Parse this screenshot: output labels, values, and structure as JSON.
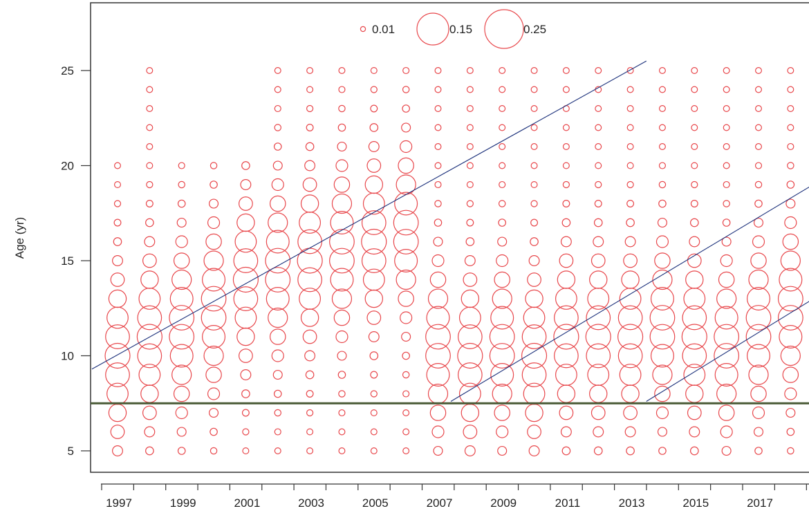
{
  "chart_data": {
    "type": "scatter",
    "subtype": "bubble",
    "title": "",
    "xlabel": "",
    "ylabel": "Age (yr)",
    "x_tick_labels": [
      "1997",
      "1999",
      "2001",
      "2003",
      "2005",
      "2007",
      "2009",
      "2011",
      "2013",
      "2015",
      "2017"
    ],
    "y_tick_labels": [
      "5",
      "10",
      "15",
      "20",
      "25"
    ],
    "xlim": [
      1996.5,
      2019.2
    ],
    "ylim": [
      4.1,
      28.7
    ],
    "years": [
      1997,
      1998,
      1999,
      2000,
      2001,
      2002,
      2003,
      2004,
      2005,
      2006,
      2007,
      2008,
      2009,
      2010,
      2011,
      2012,
      2013,
      2014,
      2015,
      2016,
      2017,
      2018
    ],
    "year_age_ranges": [
      [
        5,
        20
      ],
      [
        5,
        25
      ],
      [
        5,
        20
      ],
      [
        5,
        20
      ],
      [
        5,
        20
      ],
      [
        5,
        25
      ],
      [
        5,
        25
      ],
      [
        5,
        25
      ],
      [
        5,
        25
      ],
      [
        5,
        25
      ],
      [
        5,
        25
      ],
      [
        5,
        25
      ],
      [
        5,
        25
      ],
      [
        5,
        25
      ],
      [
        5,
        25
      ],
      [
        5,
        25
      ],
      [
        5,
        25
      ],
      [
        5,
        25
      ],
      [
        5,
        25
      ],
      [
        5,
        25
      ],
      [
        5,
        25
      ],
      [
        5,
        25
      ]
    ],
    "peak_ages": [
      10,
      11,
      11.5,
      12.5,
      14,
      14.5,
      15,
      15.5,
      16,
      16.5,
      10.5,
      10,
      10.5,
      10,
      11,
      11,
      11,
      11.5,
      11,
      10.5,
      11.5,
      12.5
    ],
    "legend": {
      "position": "top-center",
      "entries": [
        {
          "label": "0.01",
          "value": 0.01
        },
        {
          "label": "0.15",
          "value": 0.15
        },
        {
          "label": "0.25",
          "value": 0.25
        }
      ]
    },
    "reference_line": {
      "type": "horizontal",
      "y": 7.5,
      "color": "#4a5a36"
    },
    "cohort_lines": [
      {
        "x": [
          1996.2,
          2013.5
        ],
        "y": [
          9.3,
          25.5
        ]
      },
      {
        "x": [
          2007.4,
          2019.2
        ],
        "y": [
          7.6,
          19.5
        ]
      },
      {
        "x": [
          2013.5,
          2019.2
        ],
        "y": [
          7.6,
          13.5
        ]
      }
    ],
    "colors": {
      "bubble": "#e8474b",
      "cohort_line": "#1a2f7a",
      "reference_line": "#4a5a36"
    }
  }
}
